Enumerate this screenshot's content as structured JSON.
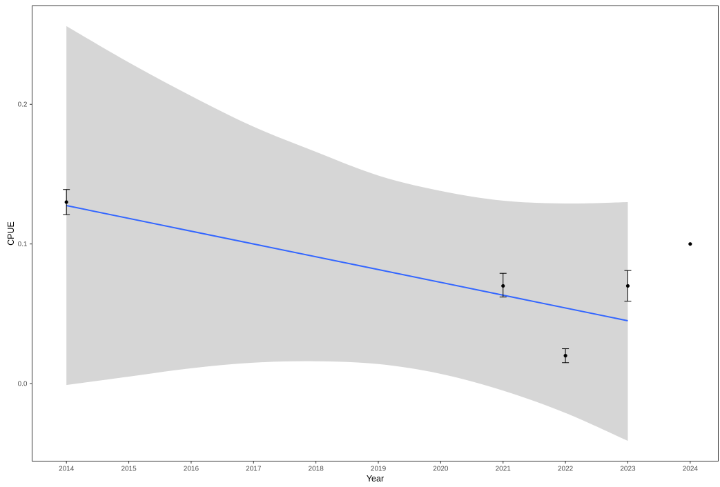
{
  "chart_data": {
    "type": "scatter",
    "xlabel": "Year",
    "ylabel": "CPUE",
    "xlim": [
      2013.45,
      2024.45
    ],
    "ylim": [
      -0.0555,
      0.2705
    ],
    "x_ticks": [
      2014,
      2015,
      2016,
      2017,
      2018,
      2019,
      2020,
      2021,
      2022,
      2023,
      2024
    ],
    "y_ticks": [
      0.0,
      0.1,
      0.2
    ],
    "y_tick_labels": [
      "0.0",
      "0.1",
      "0.2"
    ],
    "grid": false,
    "points": [
      {
        "x": 2014,
        "y": 0.13,
        "err_low": 0.121,
        "err_high": 0.139
      },
      {
        "x": 2021,
        "y": 0.07,
        "err_low": 0.062,
        "err_high": 0.079
      },
      {
        "x": 2022,
        "y": 0.02,
        "err_low": 0.015,
        "err_high": 0.025
      },
      {
        "x": 2023,
        "y": 0.07,
        "err_low": 0.059,
        "err_high": 0.081
      },
      {
        "x": 2024,
        "y": 0.1
      }
    ],
    "trend": {
      "method": "lm",
      "x_range": [
        2014,
        2023
      ],
      "fit": [
        0.1275,
        0.045
      ],
      "band_x": [
        2014,
        2015,
        2016,
        2017,
        2018,
        2019,
        2020,
        2021,
        2022,
        2023
      ],
      "band_upper": [
        0.256,
        0.23,
        0.206,
        0.184,
        0.166,
        0.149,
        0.138,
        0.131,
        0.129,
        0.13
      ],
      "band_lower": [
        -0.001,
        0.005,
        0.011,
        0.015,
        0.016,
        0.014,
        0.007,
        -0.005,
        -0.021,
        -0.041
      ]
    },
    "colors": {
      "trend_line": "#3366FF",
      "band": "#D6D6D6",
      "points": "#000000",
      "error_bars": "#000000",
      "axis": "#333333"
    }
  }
}
